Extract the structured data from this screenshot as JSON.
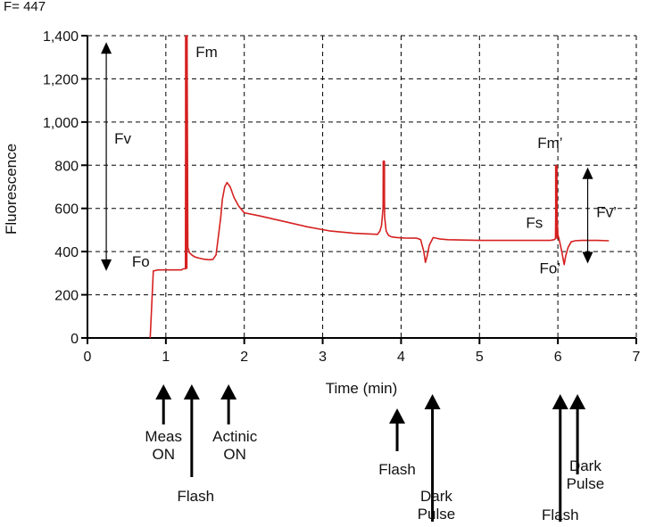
{
  "header_text": "F= 447",
  "chart_data": {
    "type": "line",
    "xlabel": "Time (min)",
    "ylabel": "Fluorescence",
    "xlim": [
      0,
      7
    ],
    "ylim": [
      0,
      1400
    ],
    "xticks": [
      0,
      1,
      2,
      3,
      4,
      5,
      6,
      7
    ],
    "yticks": [
      0,
      200,
      400,
      600,
      800,
      1000,
      1200,
      1400
    ],
    "xtick_labels": [
      "0",
      "1",
      "2",
      "3",
      "4",
      "5",
      "6",
      "7"
    ],
    "ytick_labels": [
      "0",
      "200",
      "400",
      "600",
      "800",
      "1,000",
      "1,200",
      "1,400"
    ],
    "grid": true,
    "line_color": "#d62020",
    "series": [
      {
        "x": [
          0.8,
          0.84,
          0.9,
          0.97,
          1.05,
          1.1,
          1.15,
          1.2,
          1.22,
          1.25,
          1.26,
          1.27,
          1.28,
          1.3,
          1.33,
          1.37,
          1.42,
          1.48,
          1.55,
          1.6,
          1.64,
          1.67,
          1.7,
          1.72,
          1.75,
          1.78,
          1.82,
          1.87,
          1.93,
          2.0,
          2.2,
          2.5,
          2.8,
          3.1,
          3.4,
          3.7,
          3.73,
          3.75,
          3.77,
          3.78,
          3.79,
          3.81,
          3.84,
          3.88,
          3.95,
          4.05,
          4.2,
          4.25,
          4.29,
          4.31,
          4.33,
          4.36,
          4.41,
          4.5,
          4.6,
          5.0,
          5.4,
          5.9,
          5.95,
          5.97,
          5.98,
          5.99,
          6.0,
          6.02,
          6.05,
          6.08,
          6.1,
          6.13,
          6.17,
          6.22,
          6.3,
          6.4,
          6.5,
          6.65
        ],
        "y": [
          0,
          310,
          315,
          315,
          315,
          315,
          315,
          315,
          320,
          320,
          1400,
          1400,
          420,
          395,
          385,
          375,
          370,
          365,
          362,
          364,
          385,
          470,
          560,
          640,
          700,
          720,
          700,
          650,
          610,
          580,
          565,
          540,
          515,
          495,
          485,
          480,
          495,
          520,
          600,
          820,
          560,
          495,
          475,
          468,
          465,
          463,
          462,
          455,
          400,
          350,
          375,
          430,
          465,
          458,
          455,
          452,
          452,
          452,
          455,
          460,
          800,
          560,
          480,
          450,
          400,
          340,
          380,
          420,
          445,
          450,
          452,
          452,
          452,
          450
        ]
      }
    ],
    "annotations": [
      {
        "text": "Fm",
        "x": 1.52,
        "y": 1300
      },
      {
        "text": "Fv",
        "x": 0.45,
        "y": 900
      },
      {
        "text": "Fo",
        "x": 0.68,
        "y": 330
      },
      {
        "text": "Fm’",
        "x": 5.9,
        "y": 880
      },
      {
        "text": "Fs",
        "x": 5.7,
        "y": 510
      },
      {
        "text": "Fo’",
        "x": 5.9,
        "y": 300
      },
      {
        "text": "Fv’",
        "x": 6.62,
        "y": 560
      }
    ],
    "range_arrows": [
      {
        "name": "fv",
        "x": 0.24,
        "y_from": 1370,
        "y_to": 310
      },
      {
        "name": "fv-prime",
        "x": 6.38,
        "y_from": 790,
        "y_to": 345
      }
    ],
    "event_markers": [
      {
        "name": "meas-on",
        "x": 0.97,
        "length": "short",
        "label_lines": [
          "Meas",
          "ON"
        ],
        "label_x": 0.97
      },
      {
        "name": "flash-1",
        "x": 1.33,
        "length": "medium",
        "label_lines": [
          "Flash"
        ],
        "label_x": 1.38
      },
      {
        "name": "actinic-on",
        "x": 1.8,
        "length": "short",
        "label_lines": [
          "Actinic",
          "ON"
        ],
        "label_x": 1.88
      },
      {
        "name": "flash-2",
        "x": 3.95,
        "length": "short2",
        "label_lines": [
          "Flash"
        ],
        "label_x": 3.95
      },
      {
        "name": "dark-pulse-1",
        "x": 4.4,
        "length": "long",
        "label_lines": [
          "Dark",
          "Pulse"
        ],
        "label_x": 4.45
      },
      {
        "name": "flash-3",
        "x": 6.03,
        "length": "long",
        "label_lines": [
          "Flash"
        ],
        "label_x": 6.03
      },
      {
        "name": "dark-pulse-2",
        "x": 6.25,
        "length": "medium2",
        "label_lines": [
          "Dark",
          "Pulse"
        ],
        "label_x": 6.35
      }
    ]
  }
}
